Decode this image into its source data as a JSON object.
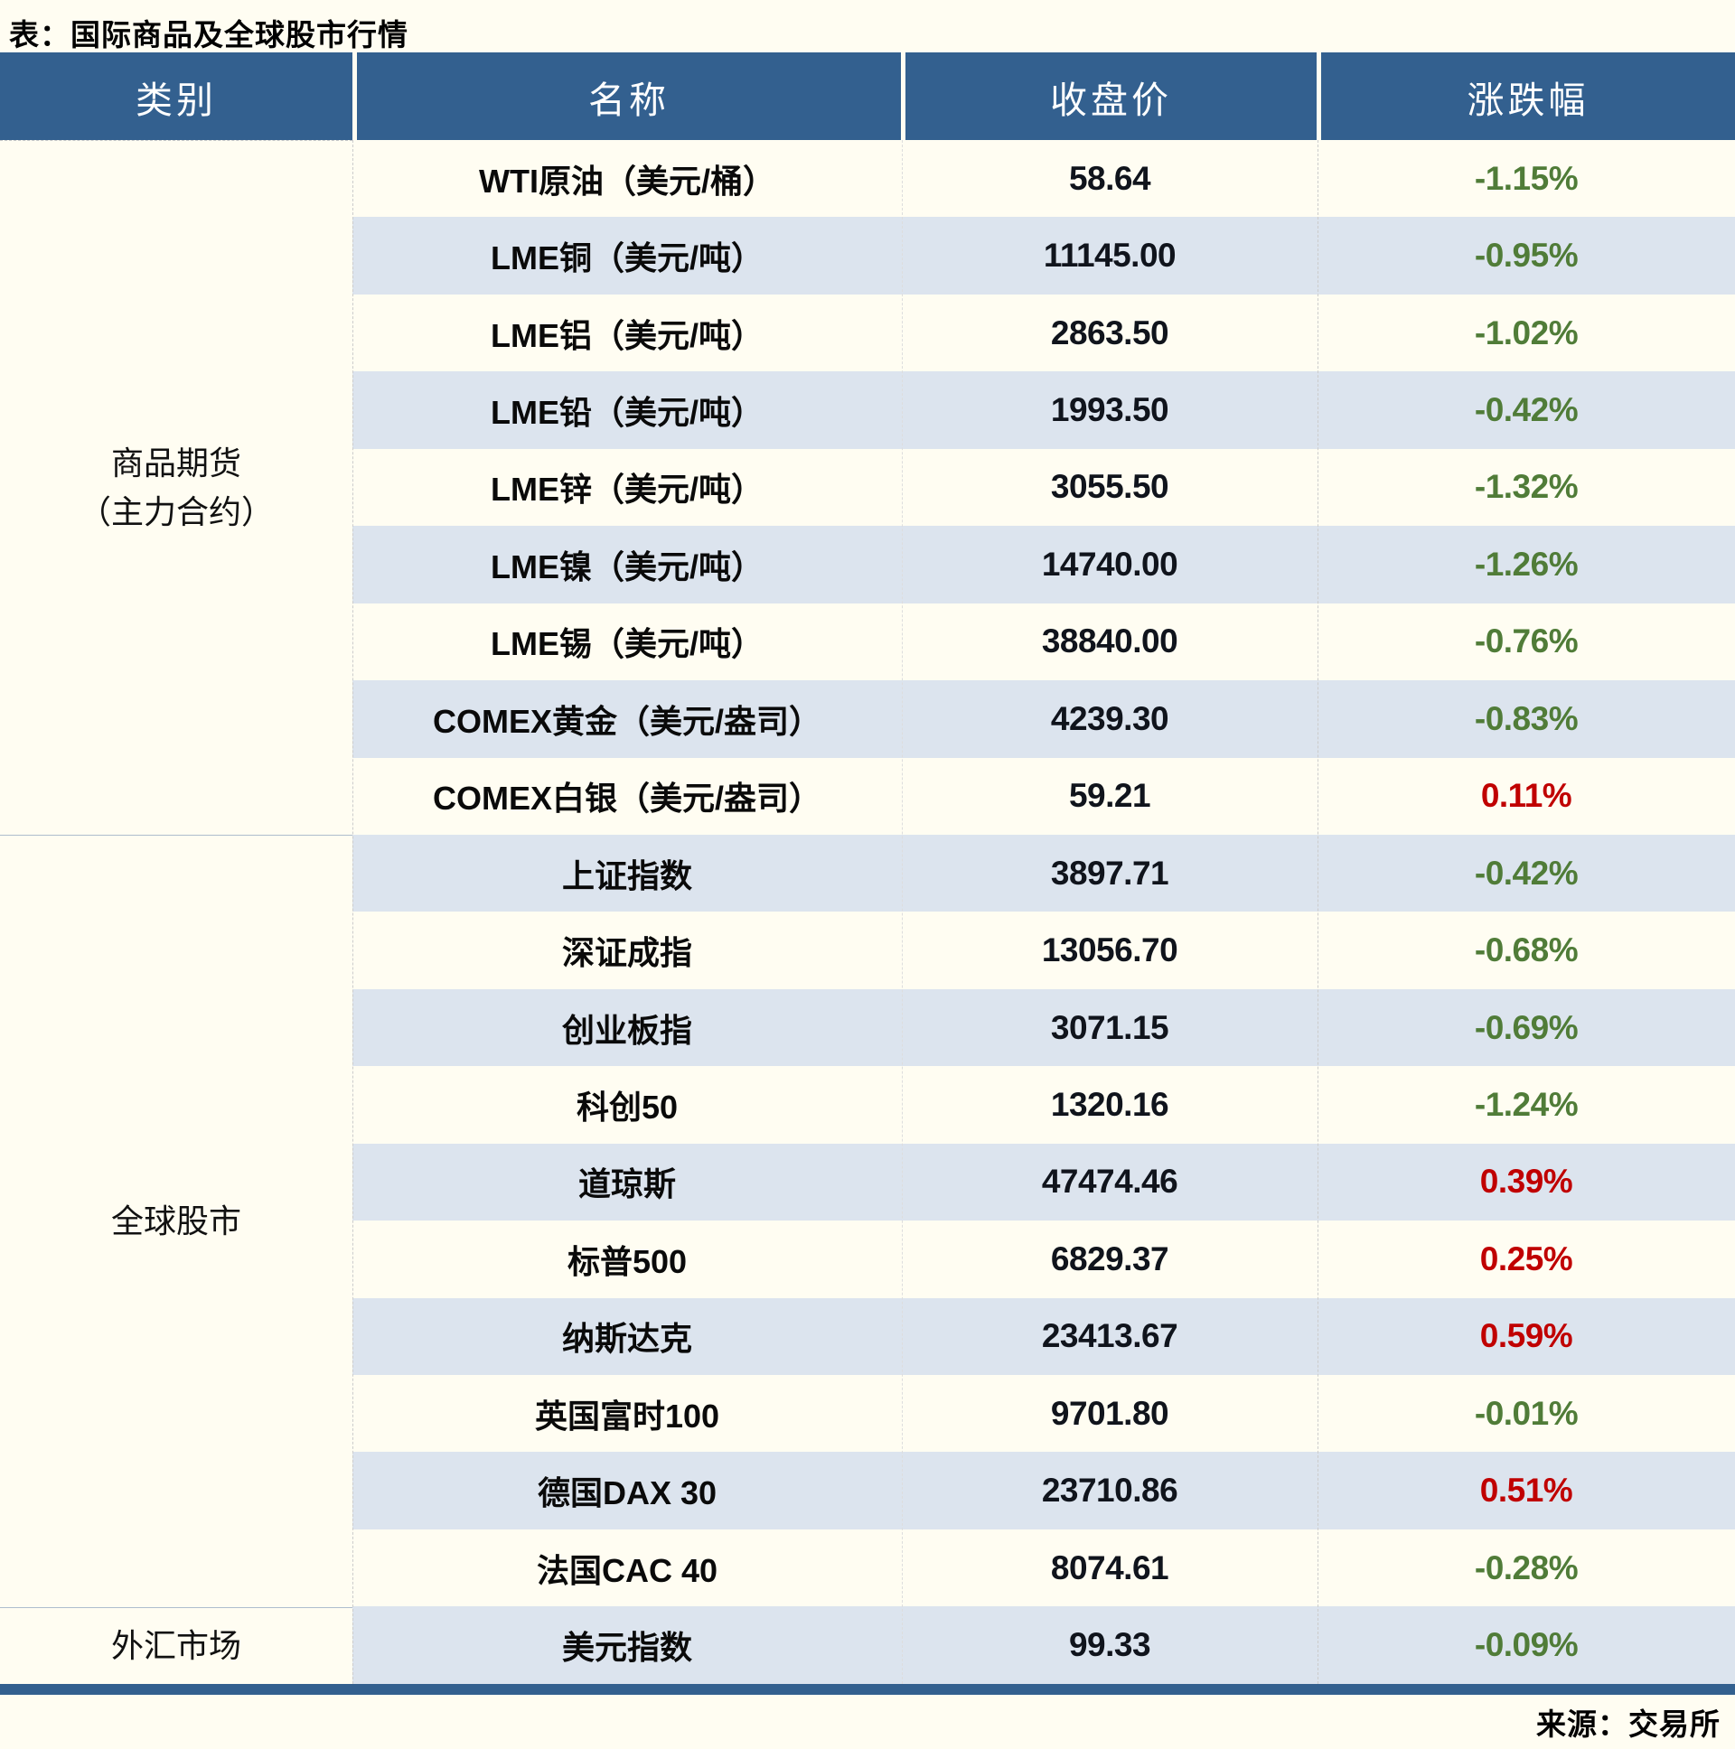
{
  "title": "表：国际商品及全球股市行情",
  "source": "来源：交易所",
  "colors": {
    "header_bg": "#33608f",
    "header_text": "#ffffff",
    "stripe_row": "#dce4ee",
    "positive_red": "#c00000",
    "negative_green": "#507c38",
    "page_bg": "#fffdf2",
    "bottom_bar": "#33608f",
    "body_text": "#10141c"
  },
  "chart_data": {
    "type": "table",
    "title": "表：国际商品及全球股市行情",
    "columns": [
      "类别",
      "名称",
      "收盘价",
      "涨跌幅"
    ],
    "categories": [
      {
        "label": "商品期货",
        "label_line2": "（主力合约）",
        "span": 9
      },
      {
        "label": "全球股市",
        "label_line2": "",
        "span": 10
      },
      {
        "label": "外汇市场",
        "label_line2": "",
        "span": 1
      }
    ],
    "rows": [
      {
        "name": "WTI原油（美元/桶）",
        "close": "58.64",
        "change": "-1.15%",
        "direction": "down"
      },
      {
        "name": "LME铜（美元/吨）",
        "close": "11145.00",
        "change": "-0.95%",
        "direction": "down"
      },
      {
        "name": "LME铝（美元/吨）",
        "close": "2863.50",
        "change": "-1.02%",
        "direction": "down"
      },
      {
        "name": "LME铅（美元/吨）",
        "close": "1993.50",
        "change": "-0.42%",
        "direction": "down"
      },
      {
        "name": "LME锌（美元/吨）",
        "close": "3055.50",
        "change": "-1.32%",
        "direction": "down"
      },
      {
        "name": "LME镍（美元/吨）",
        "close": "14740.00",
        "change": "-1.26%",
        "direction": "down"
      },
      {
        "name": "LME锡（美元/吨）",
        "close": "38840.00",
        "change": "-0.76%",
        "direction": "down"
      },
      {
        "name": "COMEX黄金（美元/盎司）",
        "close": "4239.30",
        "change": "-0.83%",
        "direction": "down"
      },
      {
        "name": "COMEX白银（美元/盎司）",
        "close": "59.21",
        "change": "0.11%",
        "direction": "up"
      },
      {
        "name": "上证指数",
        "close": "3897.71",
        "change": "-0.42%",
        "direction": "down"
      },
      {
        "name": "深证成指",
        "close": "13056.70",
        "change": "-0.68%",
        "direction": "down"
      },
      {
        "name": "创业板指",
        "close": "3071.15",
        "change": "-0.69%",
        "direction": "down"
      },
      {
        "name": "科创50",
        "close": "1320.16",
        "change": "-1.24%",
        "direction": "down"
      },
      {
        "name": "道琼斯",
        "close": "47474.46",
        "change": "0.39%",
        "direction": "up"
      },
      {
        "name": "标普500",
        "close": "6829.37",
        "change": "0.25%",
        "direction": "up"
      },
      {
        "name": "纳斯达克",
        "close": "23413.67",
        "change": "0.59%",
        "direction": "up"
      },
      {
        "name": "英国富时100",
        "close": "9701.80",
        "change": "-0.01%",
        "direction": "down"
      },
      {
        "name": "德国DAX 30",
        "close": "23710.86",
        "change": "0.51%",
        "direction": "up"
      },
      {
        "name": "法国CAC 40",
        "close": "8074.61",
        "change": "-0.28%",
        "direction": "down"
      },
      {
        "name": "美元指数",
        "close": "99.33",
        "change": "-0.09%",
        "direction": "down"
      }
    ]
  }
}
